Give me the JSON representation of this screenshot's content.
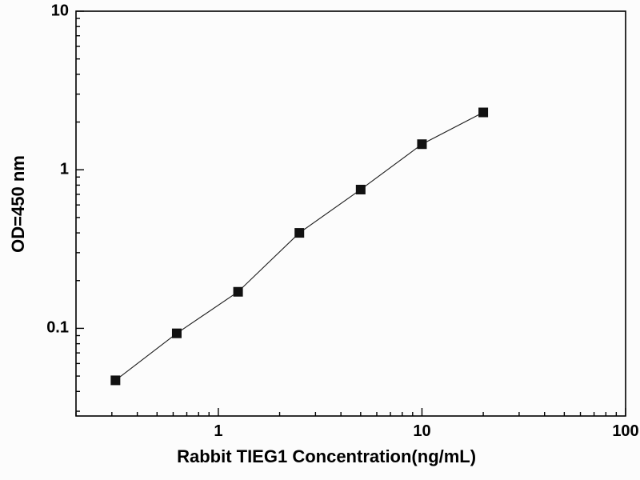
{
  "chart_data": {
    "type": "line",
    "title": "",
    "xlabel": "Rabbit TIEG1 Concentration(ng/mL)",
    "ylabel": "OD=450 nm",
    "x_scale": "log",
    "y_scale": "log",
    "xlim": [
      0.2,
      100
    ],
    "ylim": [
      0.028,
      10
    ],
    "x_ticks": [
      1,
      10,
      100
    ],
    "y_ticks": [
      0.1,
      1,
      10
    ],
    "x_tick_labels": [
      "1",
      "10",
      "100"
    ],
    "y_tick_labels": [
      "0.1",
      "1",
      "10"
    ],
    "x": [
      0.3125,
      0.625,
      1.25,
      2.5,
      5,
      10,
      20
    ],
    "y": [
      0.047,
      0.093,
      0.17,
      0.4,
      0.75,
      1.45,
      2.3
    ],
    "marker": "filled-square",
    "legend": "off",
    "grid": "off",
    "colors": {
      "line": "#1c1c1c",
      "marker": "#111111",
      "axis": "#000000",
      "background": "#fcfcfc"
    }
  }
}
